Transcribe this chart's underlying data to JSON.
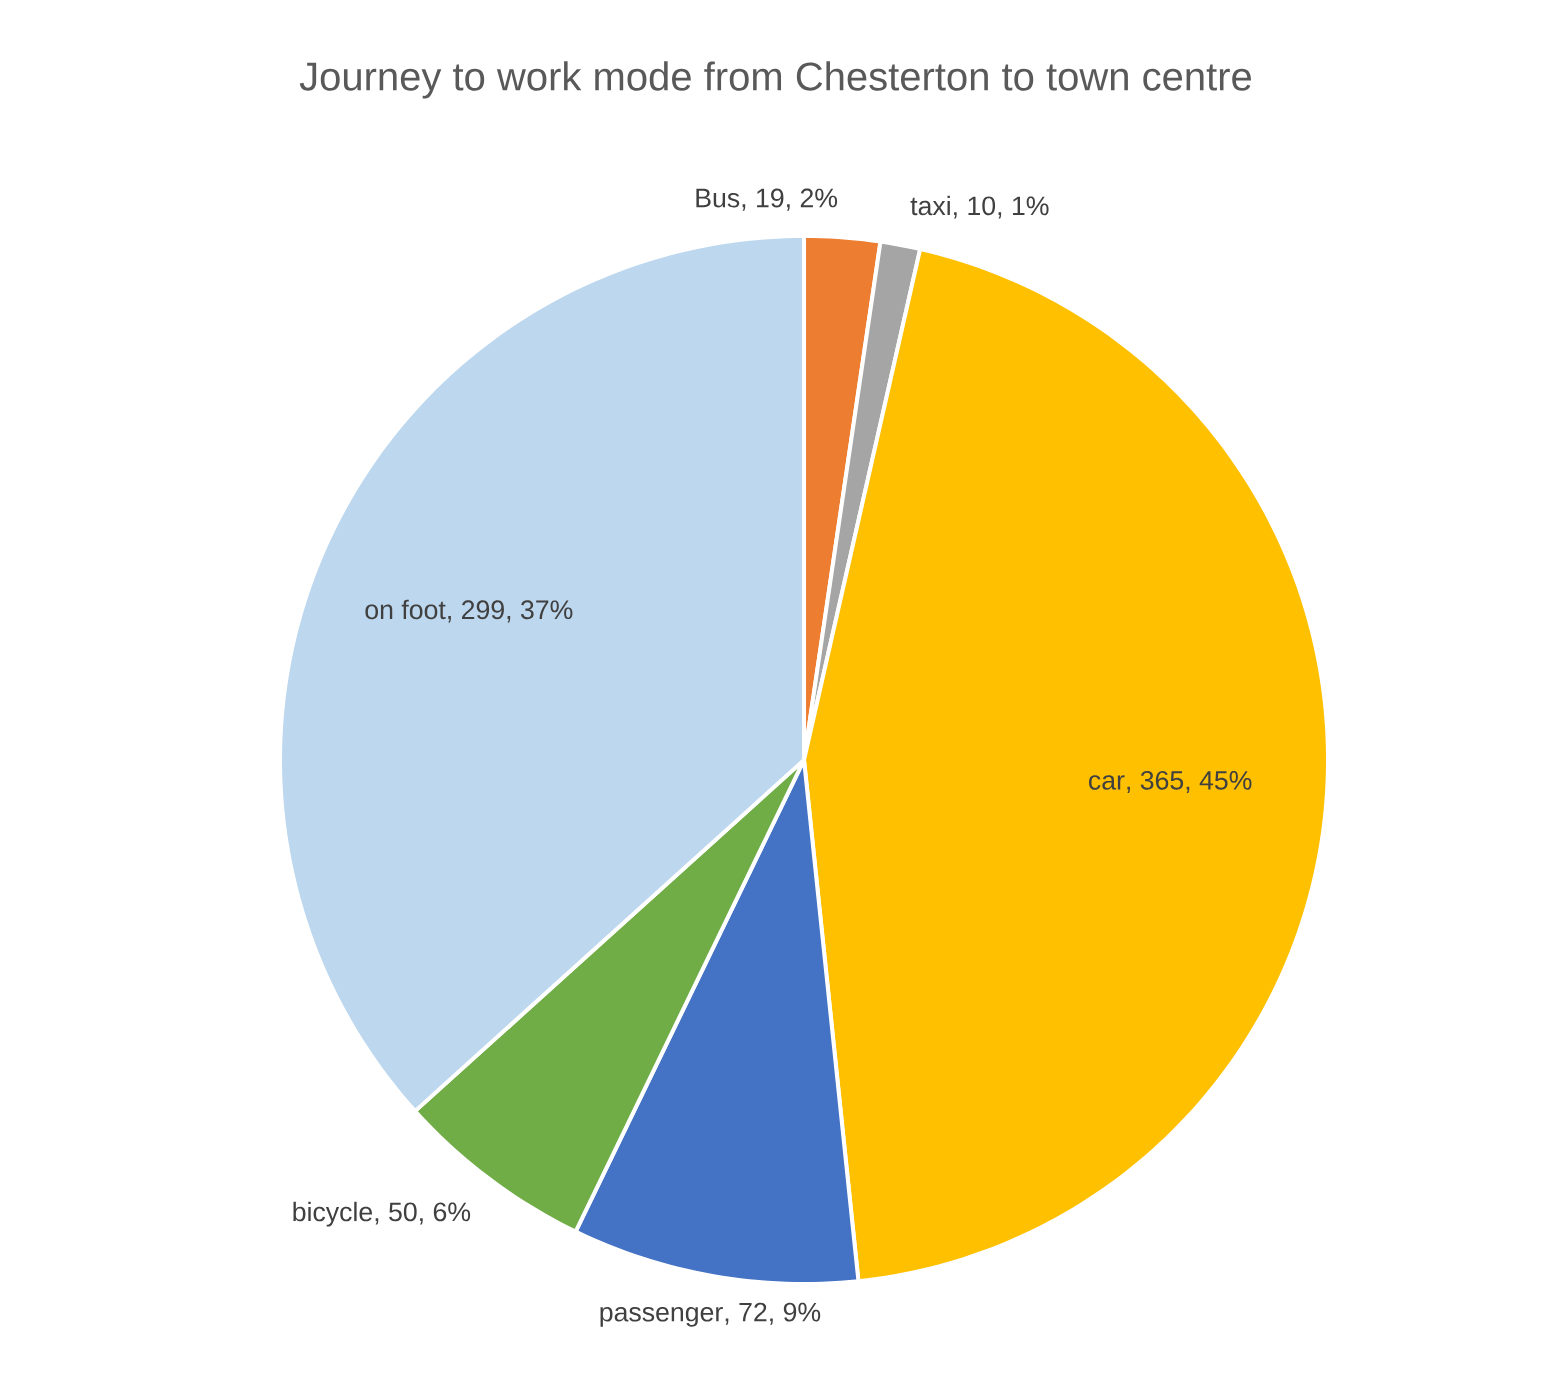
{
  "chart_data": {
    "type": "pie",
    "title": "Journey to work mode from Chesterton to town centre",
    "categories": [
      "Bus",
      "taxi",
      "car",
      "passenger",
      "bicycle",
      "on foot"
    ],
    "values": [
      19,
      10,
      365,
      72,
      50,
      299
    ],
    "colors": [
      "#ed7d31",
      "#a5a5a5",
      "#ffc000",
      "#4472c4",
      "#70ad47",
      "#bdd7ee"
    ],
    "value_labels": [
      ", 19, 2%",
      ", 10, 1%",
      ", 365, 45%",
      ", 72, 9%",
      ", 50, 6%",
      ", 299, 37%"
    ]
  }
}
